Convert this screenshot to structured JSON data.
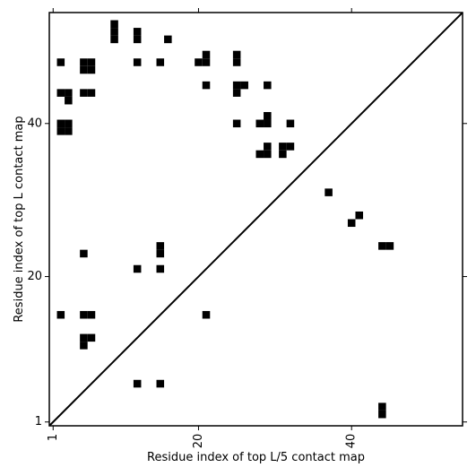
{
  "chart_data": {
    "type": "heatmap",
    "title": "",
    "xlabel": "Residue index of top L/5 contact map",
    "ylabel": "Residue index of top L contact map",
    "xlim": [
      0.5,
      54.5
    ],
    "ylim": [
      0.5,
      54.5
    ],
    "x_ticks": [
      1,
      20,
      40
    ],
    "x_tick_labels": [
      "1",
      "20",
      "40"
    ],
    "y_ticks": [
      1,
      20,
      40
    ],
    "y_tick_labels": [
      "1",
      "20",
      "40"
    ],
    "x_tick_label_rotation": -90,
    "diagonal": true,
    "grid": false,
    "colors": {
      "cell": "#000000",
      "background": "#ffffff",
      "diagonal": "#000000"
    },
    "upper_triangle_cells": [
      [
        9,
        53
      ],
      [
        9,
        52
      ],
      [
        9,
        51
      ],
      [
        12,
        52
      ],
      [
        12,
        51
      ],
      [
        16,
        51
      ],
      [
        2,
        48
      ],
      [
        12,
        48
      ],
      [
        15,
        48
      ],
      [
        5,
        48
      ],
      [
        6,
        48
      ],
      [
        5,
        47
      ],
      [
        6,
        47
      ],
      [
        20,
        48
      ],
      [
        21,
        48
      ],
      [
        21,
        49
      ],
      [
        25,
        49
      ],
      [
        25,
        48
      ],
      [
        2,
        44
      ],
      [
        3,
        44
      ],
      [
        3,
        43
      ],
      [
        5,
        44
      ],
      [
        6,
        44
      ],
      [
        21,
        45
      ],
      [
        25,
        45
      ],
      [
        26,
        45
      ],
      [
        25,
        44
      ],
      [
        29,
        45
      ],
      [
        2,
        40
      ],
      [
        3,
        40
      ],
      [
        2,
        39
      ],
      [
        3,
        39
      ],
      [
        25,
        40
      ],
      [
        28,
        40
      ],
      [
        29,
        40
      ],
      [
        29,
        41
      ],
      [
        32,
        40
      ],
      [
        28,
        36
      ],
      [
        29,
        36
      ],
      [
        29,
        37
      ],
      [
        31,
        36
      ],
      [
        31,
        37
      ],
      [
        32,
        37
      ],
      [
        37,
        31
      ],
      [
        41,
        28
      ],
      [
        40,
        27
      ],
      [
        44,
        24
      ],
      [
        45,
        24
      ],
      [
        15,
        24
      ],
      [
        15,
        23
      ],
      [
        5,
        23
      ],
      [
        12,
        21
      ],
      [
        15,
        21
      ],
      [
        2,
        15
      ],
      [
        5,
        15
      ],
      [
        6,
        15
      ],
      [
        21,
        15
      ],
      [
        5,
        12
      ],
      [
        6,
        12
      ],
      [
        5,
        11
      ],
      [
        12,
        6
      ],
      [
        15,
        6
      ],
      [
        44,
        3
      ],
      [
        44,
        2
      ]
    ]
  }
}
